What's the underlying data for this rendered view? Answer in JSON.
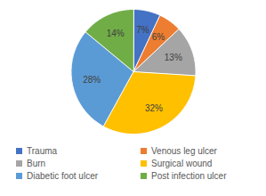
{
  "chart_data": {
    "type": "pie",
    "categories": [
      "Trauma",
      "Venous leg ulcer",
      "Burn",
      "Surgical wound",
      "Diabetic foot ulcer",
      "Post infection ulcer"
    ],
    "values": [
      7,
      6,
      13,
      32,
      28,
      14
    ],
    "value_labels": [
      "7%",
      "6%",
      "13%",
      "32%",
      "28%",
      "14%"
    ],
    "colors": [
      "#4472c4",
      "#ed7d31",
      "#a5a5a5",
      "#ffc000",
      "#5b9bd5",
      "#70ad47"
    ],
    "data_labels": true,
    "legend": "bottom"
  }
}
